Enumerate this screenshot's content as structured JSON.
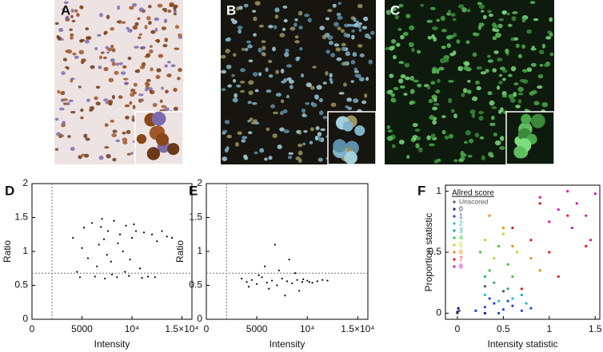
{
  "images": [
    {
      "panel_label": "A"
    },
    {
      "panel_label": "B"
    },
    {
      "panel_label": "C"
    }
  ],
  "chart_data": [
    {
      "type": "scatter",
      "panel_label": "D",
      "x_label": "Intensity",
      "y_label": "Ratio",
      "color": "#000000",
      "xlim": [
        0,
        16000
      ],
      "ylim": [
        0,
        2
      ],
      "xticks": [
        0,
        5000,
        {
          "value": 10000,
          "label": "10⁴"
        },
        {
          "value": 15000,
          "label": "1.5×10⁴"
        }
      ],
      "yticks": [
        0,
        0.5,
        1,
        1.5,
        2
      ],
      "reference_lines": [
        {
          "axis": "x",
          "value": 2000
        },
        {
          "axis": "y",
          "value": 0.68
        }
      ],
      "x": [
        4100,
        4800,
        5200,
        5600,
        6000,
        6300,
        6700,
        7000,
        7300,
        7600,
        7900,
        8200,
        8500,
        8800,
        9100,
        9400,
        9700,
        10000,
        10400,
        10800,
        11200,
        11600,
        12000,
        12500,
        13000,
        13500,
        14000,
        5000,
        6500,
        7500,
        8600,
        9300,
        10200,
        11000,
        4500,
        6900,
        8000,
        9800,
        12300,
        7200
      ],
      "values": [
        1.2,
        0.62,
        1.35,
        0.9,
        1.42,
        0.63,
        1.1,
        1.48,
        0.6,
        1.3,
        0.85,
        1.45,
        0.62,
        1.25,
        1.0,
        1.38,
        0.64,
        1.2,
        1.3,
        0.75,
        1.28,
        0.63,
        1.25,
        1.15,
        1.3,
        1.22,
        1.2,
        1.05,
        0.78,
        0.95,
        1.12,
        0.7,
        1.4,
        0.61,
        0.7,
        1.36,
        0.66,
        0.88,
        0.62,
        1.18
      ]
    },
    {
      "type": "scatter",
      "panel_label": "E",
      "x_label": "Intensity",
      "y_label": "Ratio",
      "color": "#000000",
      "xlim": [
        0,
        16000
      ],
      "ylim": [
        0,
        2
      ],
      "xticks": [
        0,
        5000,
        {
          "value": 10000,
          "label": "10⁴"
        },
        {
          "value": 15000,
          "label": "1.5×10⁴"
        }
      ],
      "yticks": [
        0,
        0.5,
        1,
        1.5,
        2
      ],
      "reference_lines": [
        {
          "axis": "x",
          "value": 2000
        },
        {
          "axis": "y",
          "value": 0.68
        }
      ],
      "x": [
        3500,
        4000,
        4500,
        5000,
        5500,
        6000,
        6500,
        7000,
        7500,
        8000,
        8500,
        9000,
        9500,
        10000,
        10500,
        11000,
        11500,
        12000,
        4200,
        5200,
        6200,
        7200,
        8200,
        9200,
        10200,
        6800,
        8800,
        7800,
        5800,
        9600
      ],
      "values": [
        0.6,
        0.55,
        0.58,
        0.52,
        0.62,
        0.54,
        0.57,
        0.5,
        0.6,
        0.56,
        0.53,
        0.58,
        0.55,
        0.57,
        0.54,
        0.56,
        0.58,
        0.57,
        0.48,
        0.65,
        0.45,
        0.72,
        0.88,
        0.42,
        0.55,
        1.1,
        0.68,
        0.35,
        0.78,
        0.59
      ]
    },
    {
      "type": "scatter",
      "panel_label": "F",
      "x_label": "Intensity statistic",
      "y_label": "Proportion statistic",
      "xlim": [
        -0.13,
        1.55
      ],
      "ylim": [
        -0.05,
        1.05
      ],
      "xticks": [
        0,
        0.5,
        1,
        1.5
      ],
      "yticks": [
        0,
        0.5,
        1
      ],
      "legend": {
        "title": "Allred score",
        "position": "upper left"
      },
      "series": [
        {
          "name": "Unscored",
          "color": "#555555",
          "x": [
            0,
            0.02,
            0.3,
            0.5
          ],
          "values": [
            0,
            0.02,
            0.22,
            0.18
          ]
        },
        {
          "name": "0",
          "color": "#1a1a8c",
          "x": [
            0,
            0.01,
            0.2,
            0.3
          ],
          "values": [
            0.01,
            0.04,
            0.02,
            0
          ]
        },
        {
          "name": "1",
          "color": "#2244ee",
          "x": [
            0.2,
            0.3,
            0.4,
            0.5,
            0.6,
            0.7,
            0.8,
            0.35,
            0.45,
            0.55
          ],
          "values": [
            0.02,
            0.05,
            0.08,
            0.03,
            0.06,
            0.02,
            0.04,
            0.12,
            0,
            0.1
          ]
        },
        {
          "name": "2",
          "color": "#22bbdd",
          "x": [
            0.3,
            0.45,
            0.6,
            0.75
          ],
          "values": [
            0.15,
            0.1,
            0.12,
            0.08
          ]
        },
        {
          "name": "3",
          "color": "#22aa88",
          "x": [
            0.3,
            0.4,
            0.55,
            0.7
          ],
          "values": [
            0.3,
            0.25,
            0.2,
            0.15
          ]
        },
        {
          "name": "4",
          "color": "#33cc33",
          "x": [
            0.25,
            0.35,
            0.45,
            0.55,
            0.6
          ],
          "values": [
            0.5,
            0.35,
            0.55,
            0.4,
            0.3
          ]
        },
        {
          "name": "5",
          "color": "#cccc22",
          "x": [
            0.3,
            0.4,
            0.5,
            0.65
          ],
          "values": [
            0.6,
            0.45,
            0.65,
            0.5
          ]
        },
        {
          "name": "6",
          "color": "#ff8800",
          "x": [
            0.35,
            0.5,
            0.6,
            0.8,
            0.9
          ],
          "values": [
            0.8,
            0.7,
            0.55,
            0.45,
            0.35
          ]
        },
        {
          "name": "7",
          "color": "#ee1111",
          "x": [
            0.6,
            0.8,
            1.0,
            1.2,
            0.9,
            1.1,
            1.4,
            0.7
          ],
          "values": [
            0.7,
            0.6,
            0.5,
            0.8,
            0.9,
            0.3,
            0.55,
            0.2
          ]
        },
        {
          "name": "8",
          "color": "#dd11aa",
          "x": [
            0.9,
            1.1,
            1.2,
            1.3,
            1.4,
            1.5,
            1.25,
            1.45,
            1.0
          ],
          "values": [
            0.95,
            0.85,
            1.0,
            0.9,
            0.8,
            0.98,
            0.7,
            0.6,
            0.75
          ]
        }
      ]
    }
  ]
}
